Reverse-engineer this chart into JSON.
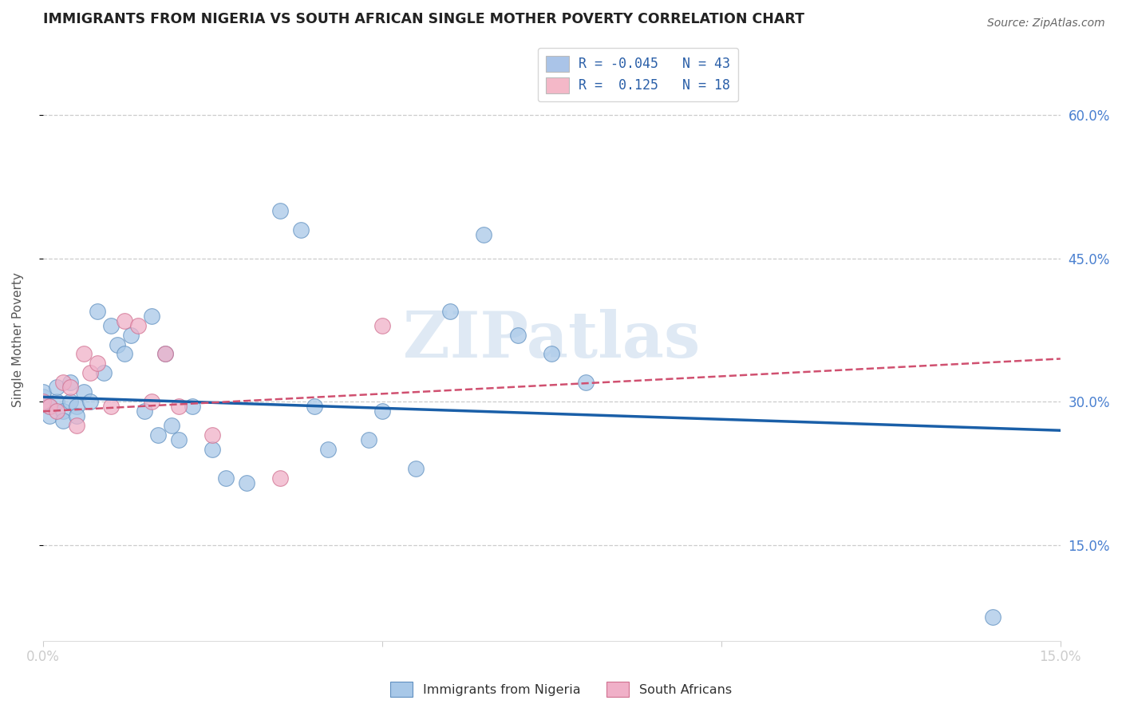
{
  "title": "IMMIGRANTS FROM NIGERIA VS SOUTH AFRICAN SINGLE MOTHER POVERTY CORRELATION CHART",
  "source": "Source: ZipAtlas.com",
  "ylabel": "Single Mother Poverty",
  "right_yticks": [
    "60.0%",
    "45.0%",
    "30.0%",
    "15.0%"
  ],
  "right_ytick_vals": [
    0.6,
    0.45,
    0.3,
    0.15
  ],
  "xlim": [
    0.0,
    0.15
  ],
  "ylim": [
    0.05,
    0.68
  ],
  "legend_entries": [
    {
      "label": "R = -0.045   N = 43",
      "color": "#aac4e8"
    },
    {
      "label": "R =  0.125   N = 18",
      "color": "#f4b8c8"
    }
  ],
  "nigeria_scatter_x": [
    0.0,
    0.0,
    0.001,
    0.001,
    0.002,
    0.002,
    0.003,
    0.003,
    0.004,
    0.004,
    0.005,
    0.005,
    0.006,
    0.007,
    0.008,
    0.009,
    0.01,
    0.011,
    0.012,
    0.013,
    0.015,
    0.016,
    0.017,
    0.018,
    0.019,
    0.02,
    0.022,
    0.025,
    0.027,
    0.03,
    0.035,
    0.038,
    0.04,
    0.042,
    0.048,
    0.05,
    0.055,
    0.06,
    0.065,
    0.07,
    0.075,
    0.08,
    0.14
  ],
  "nigeria_scatter_y": [
    0.305,
    0.31,
    0.295,
    0.285,
    0.3,
    0.315,
    0.29,
    0.28,
    0.32,
    0.3,
    0.295,
    0.285,
    0.31,
    0.3,
    0.395,
    0.33,
    0.38,
    0.36,
    0.35,
    0.37,
    0.29,
    0.39,
    0.265,
    0.35,
    0.275,
    0.26,
    0.295,
    0.25,
    0.22,
    0.215,
    0.5,
    0.48,
    0.295,
    0.25,
    0.26,
    0.29,
    0.23,
    0.395,
    0.475,
    0.37,
    0.35,
    0.32,
    0.075
  ],
  "sa_scatter_x": [
    0.0,
    0.001,
    0.002,
    0.003,
    0.004,
    0.005,
    0.006,
    0.007,
    0.008,
    0.01,
    0.012,
    0.014,
    0.016,
    0.018,
    0.02,
    0.025,
    0.035,
    0.05
  ],
  "sa_scatter_y": [
    0.3,
    0.295,
    0.29,
    0.32,
    0.315,
    0.275,
    0.35,
    0.33,
    0.34,
    0.295,
    0.385,
    0.38,
    0.3,
    0.35,
    0.295,
    0.265,
    0.22,
    0.38
  ],
  "nigeria_color": "#a8c8e8",
  "nigeria_edge": "#6090c0",
  "sa_color": "#f0b0c8",
  "sa_edge": "#d07090",
  "trend_nigeria_color": "#1a5fa8",
  "trend_sa_color": "#d05070",
  "watermark": "ZIPatlas",
  "background_color": "#ffffff",
  "grid_color": "#cccccc",
  "nigeria_trend_x0": 0.0,
  "nigeria_trend_x1": 0.15,
  "nigeria_trend_y0": 0.305,
  "nigeria_trend_y1": 0.27,
  "sa_trend_x0": 0.0,
  "sa_trend_x1": 0.15,
  "sa_trend_y0": 0.29,
  "sa_trend_y1": 0.345
}
